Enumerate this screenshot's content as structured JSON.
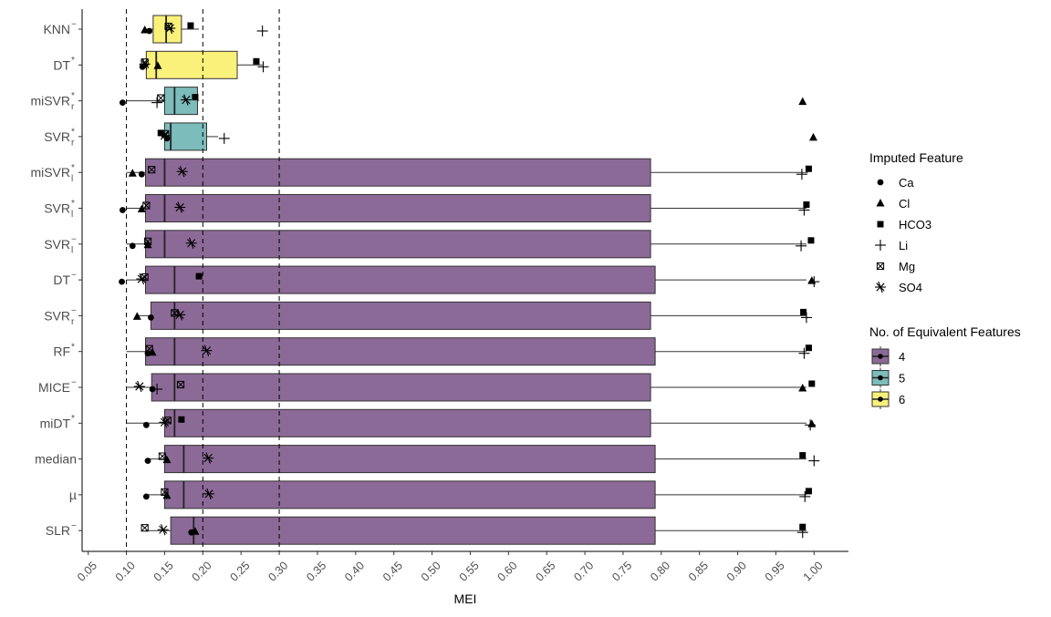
{
  "chart_data": {
    "type": "boxplot",
    "xlabel": "MEI",
    "x_ticks": [
      "0.05",
      "0.10",
      "0.15",
      "0.20",
      "0.25",
      "0.30",
      "0.35",
      "0.40",
      "0.45",
      "0.50",
      "0.55",
      "0.60",
      "0.65",
      "0.70",
      "0.75",
      "0.80",
      "0.85",
      "0.90",
      "0.95",
      "1.00"
    ],
    "xlim": [
      0.042,
      1.045
    ],
    "reference_lines": [
      0.1,
      0.2,
      0.3
    ],
    "grid": false,
    "legend_position": "right",
    "legend_feature_title": "Imputed Feature",
    "legend_group_title": "No. of Equivalent Features",
    "features": [
      {
        "name": "Ca",
        "marker": "circle"
      },
      {
        "name": "Cl",
        "marker": "triangle"
      },
      {
        "name": "HCO3",
        "marker": "square"
      },
      {
        "name": "Li",
        "marker": "plus"
      },
      {
        "name": "Mg",
        "marker": "boxx"
      },
      {
        "name": "SO4",
        "marker": "asterisk"
      }
    ],
    "groups": [
      {
        "name": "4",
        "color": "#8c6a97"
      },
      {
        "name": "5",
        "color": "#7cbcbb"
      },
      {
        "name": "6",
        "color": "#faf17a"
      }
    ],
    "methods": [
      {
        "name": "KNN",
        "sup": "−",
        "sub": "",
        "group": "6",
        "box": {
          "min": 0.125,
          "q1": 0.135,
          "median": 0.152,
          "q3": 0.172,
          "max": 0.195
        },
        "points": {
          "Ca": 0.13,
          "Cl": 0.124,
          "HCO3": 0.184,
          "Li": 0.278,
          "Mg": 0.155,
          "SO4": 0.157
        }
      },
      {
        "name": "DT",
        "sup": "*",
        "sub": "",
        "group": "6",
        "box": {
          "min": 0.119,
          "q1": 0.126,
          "median": 0.139,
          "q3": 0.245,
          "max": 0.278
        },
        "points": {
          "Ca": 0.121,
          "Cl": 0.141,
          "HCO3": 0.27,
          "Li": 0.279,
          "Mg": 0.124,
          "SO4": 0.124
        }
      },
      {
        "name": "miSVR",
        "sup": "*",
        "sub": "r",
        "group": "5",
        "box": {
          "min": 0.1,
          "q1": 0.15,
          "median": 0.163,
          "q3": 0.193,
          "max": 0.195
        },
        "points": {
          "Ca": 0.095,
          "Cl": 0.985,
          "HCO3": 0.19,
          "Li": 0.14,
          "Mg": 0.145,
          "SO4": 0.178
        }
      },
      {
        "name": "SVR",
        "sup": "*",
        "sub": "r",
        "group": "5",
        "box": {
          "min": 0.146,
          "q1": 0.15,
          "median": 0.158,
          "q3": 0.205,
          "max": 0.22
        },
        "points": {
          "Ca": 0.153,
          "Cl": 0.999,
          "HCO3": 0.145,
          "Li": 0.228,
          "Mg": 0.151,
          "SO4": 0.15
        }
      },
      {
        "name": "miSVR",
        "sup": "*",
        "sub": "l",
        "group": "4",
        "box": {
          "min": 0.1,
          "q1": 0.125,
          "median": 0.15,
          "q3": 0.786,
          "max": 0.992
        },
        "points": {
          "Ca": 0.12,
          "Cl": 0.108,
          "HCO3": 0.993,
          "Li": 0.984,
          "Mg": 0.133,
          "SO4": 0.173
        }
      },
      {
        "name": "SVR",
        "sup": "*",
        "sub": "l",
        "group": "4",
        "box": {
          "min": 0.1,
          "q1": 0.125,
          "median": 0.15,
          "q3": 0.786,
          "max": 0.99
        },
        "points": {
          "Ca": 0.095,
          "Cl": 0.12,
          "HCO3": 0.99,
          "Li": 0.987,
          "Mg": 0.126,
          "SO4": 0.17
        }
      },
      {
        "name": "SVR",
        "sup": "−",
        "sub": "l",
        "group": "4",
        "box": {
          "min": 0.1,
          "q1": 0.125,
          "median": 0.15,
          "q3": 0.786,
          "max": 0.99
        },
        "points": {
          "Ca": 0.108,
          "Cl": 0.128,
          "HCO3": 0.996,
          "Li": 0.983,
          "Mg": 0.128,
          "SO4": 0.185
        }
      },
      {
        "name": "DT",
        "sup": "−",
        "sub": "",
        "group": "4",
        "box": {
          "min": 0.1,
          "q1": 0.125,
          "median": 0.163,
          "q3": 0.792,
          "max": 0.99
        },
        "points": {
          "Ca": 0.094,
          "Cl": 0.997,
          "HCO3": 0.195,
          "Li": 1.0,
          "Mg": 0.124,
          "SO4": 0.12
        }
      },
      {
        "name": "SVR",
        "sup": "−",
        "sub": "r",
        "group": "4",
        "box": {
          "min": 0.115,
          "q1": 0.132,
          "median": 0.163,
          "q3": 0.786,
          "max": 0.99
        },
        "points": {
          "Ca": 0.132,
          "Cl": 0.114,
          "HCO3": 0.986,
          "Li": 0.99,
          "Mg": 0.163,
          "SO4": 0.17
        }
      },
      {
        "name": "RF",
        "sup": "*",
        "sub": "",
        "group": "4",
        "box": {
          "min": 0.1,
          "q1": 0.125,
          "median": 0.163,
          "q3": 0.792,
          "max": 0.99
        },
        "points": {
          "Ca": 0.128,
          "Cl": 0.134,
          "HCO3": 0.993,
          "Li": 0.987,
          "Mg": 0.13,
          "SO4": 0.205
        }
      },
      {
        "name": "MICE",
        "sup": "−",
        "sub": "",
        "group": "4",
        "box": {
          "min": 0.1,
          "q1": 0.133,
          "median": 0.163,
          "q3": 0.786,
          "max": 0.99
        },
        "points": {
          "Ca": 0.134,
          "Cl": 0.985,
          "HCO3": 0.997,
          "Li": 0.14,
          "Mg": 0.171,
          "SO4": 0.117
        }
      },
      {
        "name": "miDT",
        "sup": "*",
        "sub": "",
        "group": "4",
        "box": {
          "min": 0.1,
          "q1": 0.15,
          "median": 0.163,
          "q3": 0.786,
          "max": 0.99
        },
        "points": {
          "Ca": 0.126,
          "Cl": 0.997,
          "HCO3": 0.172,
          "Li": 0.995,
          "Mg": 0.154,
          "SO4": 0.15
        }
      },
      {
        "name": "median",
        "sup": "",
        "sub": "",
        "group": "4",
        "box": {
          "min": 0.125,
          "q1": 0.15,
          "median": 0.175,
          "q3": 0.792,
          "max": 0.99
        },
        "points": {
          "Ca": 0.128,
          "Cl": 0.153,
          "HCO3": 0.985,
          "Li": 1.0,
          "Mg": 0.147,
          "SO4": 0.207
        }
      },
      {
        "name": "µ",
        "sup": "",
        "sub": "",
        "group": "4",
        "box": {
          "min": 0.125,
          "q1": 0.15,
          "median": 0.175,
          "q3": 0.792,
          "max": 0.99
        },
        "points": {
          "Ca": 0.126,
          "Cl": 0.153,
          "HCO3": 0.993,
          "Li": 0.988,
          "Mg": 0.15,
          "SO4": 0.208
        }
      },
      {
        "name": "SLR",
        "sup": "−",
        "sub": "",
        "group": "4",
        "box": {
          "min": 0.125,
          "q1": 0.158,
          "median": 0.188,
          "q3": 0.792,
          "max": 0.99
        },
        "points": {
          "Ca": 0.185,
          "Cl": 0.19,
          "HCO3": 0.985,
          "Li": 0.985,
          "Mg": 0.124,
          "SO4": 0.148
        }
      }
    ]
  }
}
